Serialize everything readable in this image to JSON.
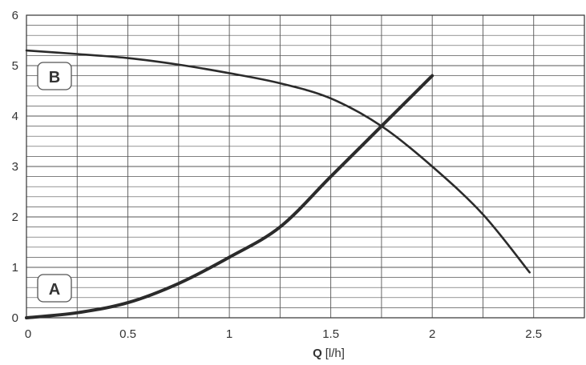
{
  "chart_data": {
    "type": "line",
    "xlim": [
      0,
      2.75
    ],
    "ylim": [
      0,
      6
    ],
    "x_ticks": [
      "0",
      "0.5",
      "1",
      "1.5",
      "2",
      "2.5"
    ],
    "y_ticks": [
      "0",
      "1",
      "2",
      "3",
      "4",
      "5",
      "6"
    ],
    "xlabel_symbol": "Q",
    "xlabel_unit": "[l/h]",
    "grid": true,
    "series": [
      {
        "name": "A",
        "x": [
          0,
          0.25,
          0.5,
          0.75,
          1.0,
          1.25,
          1.5,
          1.75,
          2.0
        ],
        "y": [
          0.0,
          0.1,
          0.3,
          0.68,
          1.2,
          1.8,
          2.8,
          3.8,
          4.8
        ]
      },
      {
        "name": "B",
        "x": [
          0,
          0.25,
          0.5,
          0.75,
          1.0,
          1.25,
          1.5,
          1.75,
          2.0,
          2.25,
          2.48
        ],
        "y": [
          5.3,
          5.23,
          5.15,
          5.02,
          4.85,
          4.65,
          4.35,
          3.8,
          3.0,
          2.05,
          0.9
        ]
      }
    ],
    "colors": {
      "curve": "#2b2b2b",
      "grid": "#555555",
      "text": "#333333"
    }
  }
}
